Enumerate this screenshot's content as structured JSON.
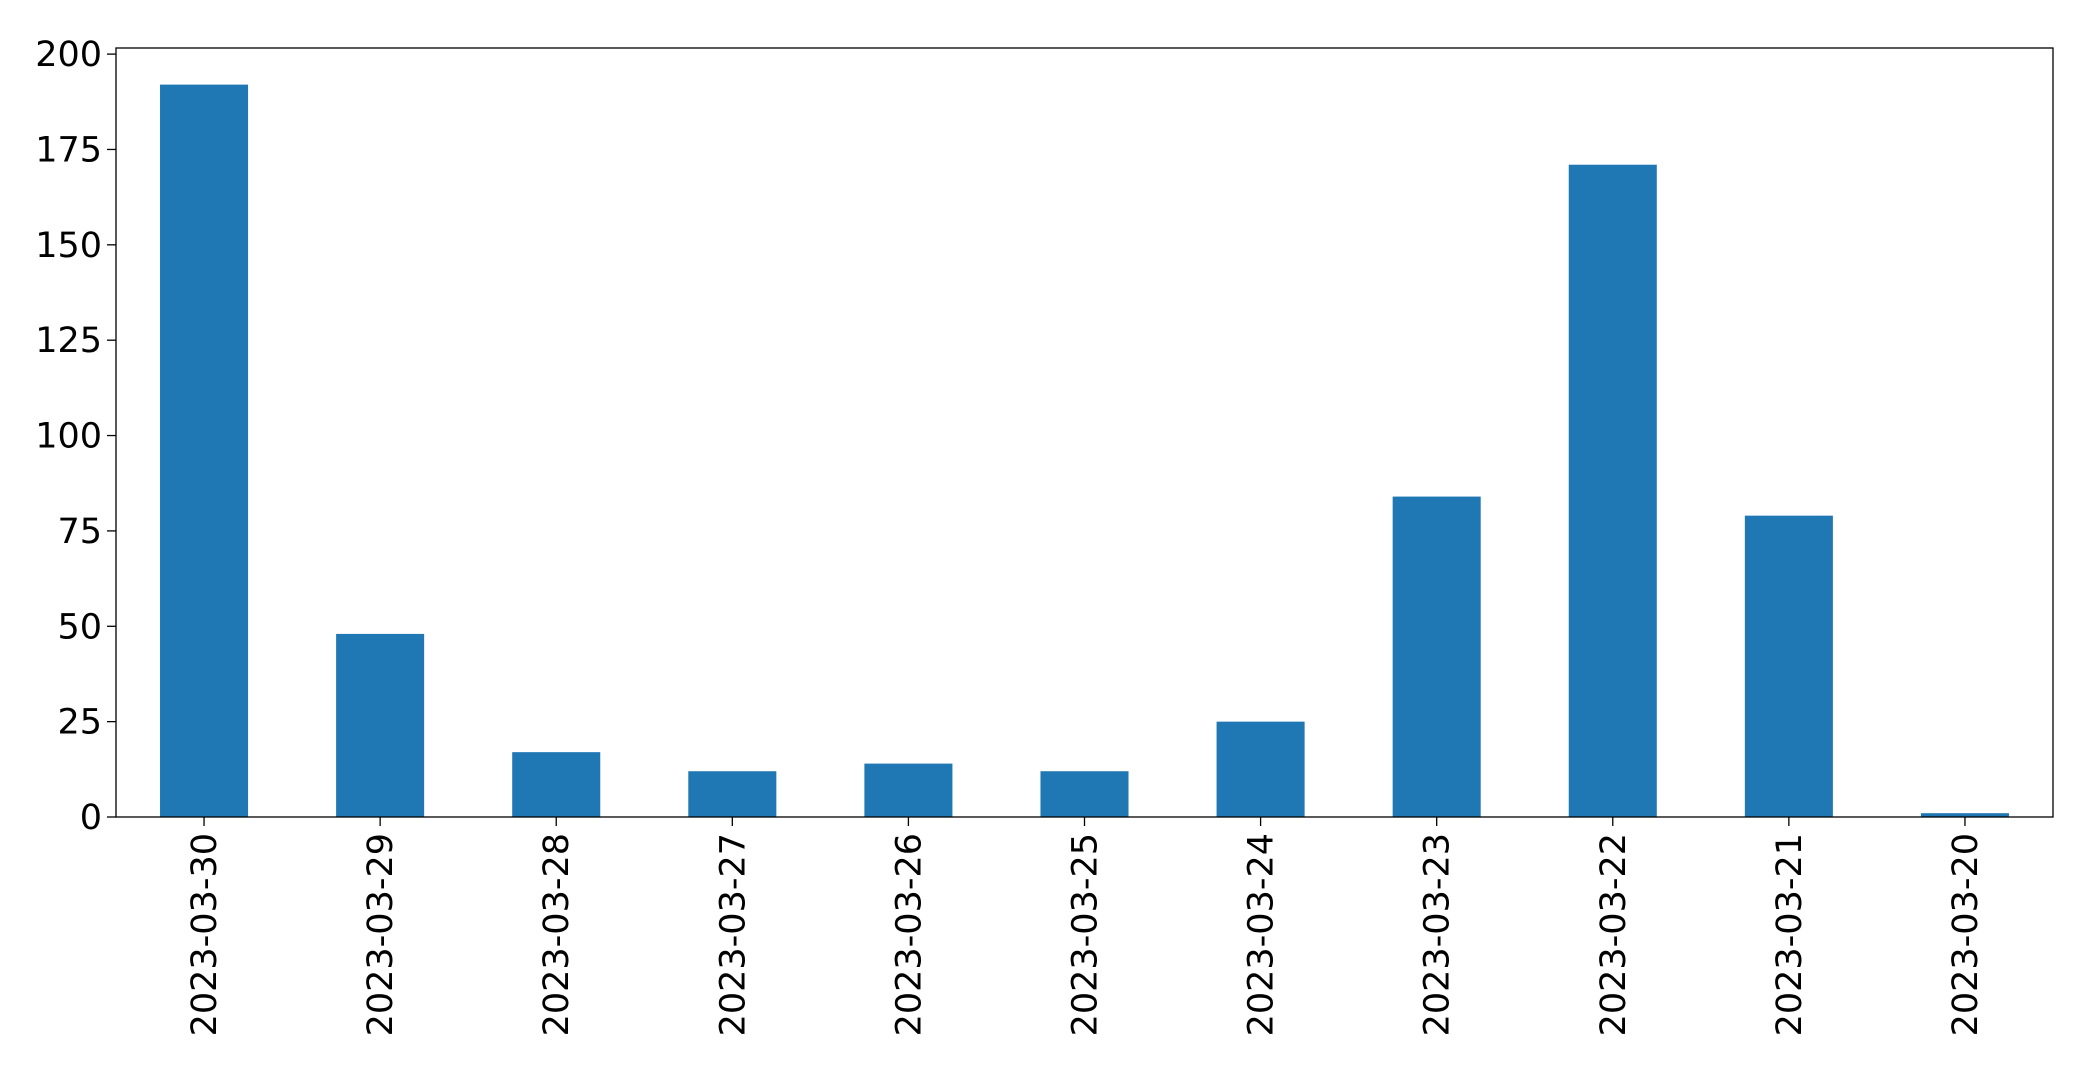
{
  "chart_data": {
    "type": "bar",
    "categories": [
      "2023-03-30",
      "2023-03-29",
      "2023-03-28",
      "2023-03-27",
      "2023-03-26",
      "2023-03-25",
      "2023-03-24",
      "2023-03-23",
      "2023-03-22",
      "2023-03-21",
      "2023-03-20"
    ],
    "values": [
      192,
      48,
      17,
      12,
      14,
      12,
      25,
      84,
      171,
      79,
      1
    ],
    "color": "#1f77b4",
    "ylim": [
      0,
      201.6
    ],
    "yticks": [
      0,
      25,
      50,
      75,
      100,
      125,
      150,
      175,
      200
    ],
    "grid": false
  }
}
